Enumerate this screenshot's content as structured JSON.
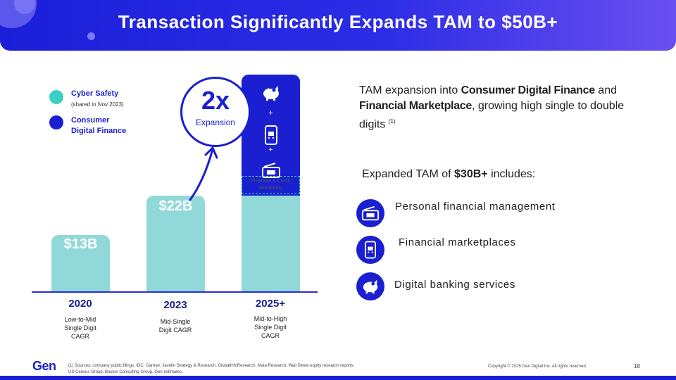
{
  "header": {
    "title": "Transaction Significantly Expands TAM to $50B+"
  },
  "legend": {
    "items": [
      {
        "label": "Cyber Safety",
        "sub": "(shared in Nov 2023)",
        "color": "#3ecfc4"
      },
      {
        "label_line1": "Consumer",
        "label_line2": "Digital Finance",
        "color": "#1a1fd0"
      }
    ]
  },
  "chart_data": {
    "type": "bar",
    "categories": [
      "2020",
      "2023",
      "2025+"
    ],
    "series": [
      {
        "name": "Cyber Safety",
        "values": [
          13,
          22,
          22
        ]
      },
      {
        "name": "Consumer Digital Finance",
        "values": [
          0,
          0,
          28
        ]
      }
    ],
    "data_labels": [
      "$13B",
      "$22B",
      ""
    ],
    "cagr_labels": [
      [
        "Low-to-Mid",
        "Single Digit",
        "CAGR"
      ],
      [
        "Mid-Single",
        "Digit CAGR"
      ],
      [
        "Mid-to-High",
        "Single Digit",
        "CAGR"
      ]
    ],
    "ylim": [
      0,
      50
    ],
    "colors": {
      "cyber_safety": "#91d9d8",
      "consumer_digital_finance": "#1a1fd0",
      "axis": "#2a2fd9"
    }
  },
  "stack_icons": {
    "piggy": "piggy-bank-icon",
    "plus1": "+",
    "phone": "mobile-cart-icon",
    "plus2": "+",
    "wallet": "wallet-cash-icon",
    "monitoring_line1": "Financial & Credit",
    "monitoring_line2": "Monitoring"
  },
  "expansion": {
    "multiplier": "2x",
    "label": "Expansion"
  },
  "right": {
    "para_pre": "TAM expansion into ",
    "para_b1": "Consumer Digital Finance",
    "para_mid": " and ",
    "para_b2": "Financial Marketplace",
    "para_post": ", growing high  single  to double digits ",
    "para_note": "(1)",
    "includes_pre": "Expanded TAM of ",
    "includes_b": "$30B+",
    "includes_post": " includes:",
    "features": [
      {
        "label": "Personal financial management",
        "icon": "wallet-cash-icon"
      },
      {
        "label": "Financial marketplaces",
        "icon": "mobile-cart-icon"
      },
      {
        "label": "Digital banking services",
        "icon": "piggy-bank-icon"
      }
    ]
  },
  "footer": {
    "logo": "Gen",
    "source_line1": "(1)   Sources: company public filings,  IDC, Gartner, Javelin Strategy & Research, GlobalInfoResearch, Maia Research, Wall Street equity research reports,",
    "source_line2": "US Census Group, Boston Consulting Group, Gen estimates.",
    "copyright": "Copyright © 2025 Gen Digital Inc. All rights reserved.",
    "page_number": "18"
  }
}
